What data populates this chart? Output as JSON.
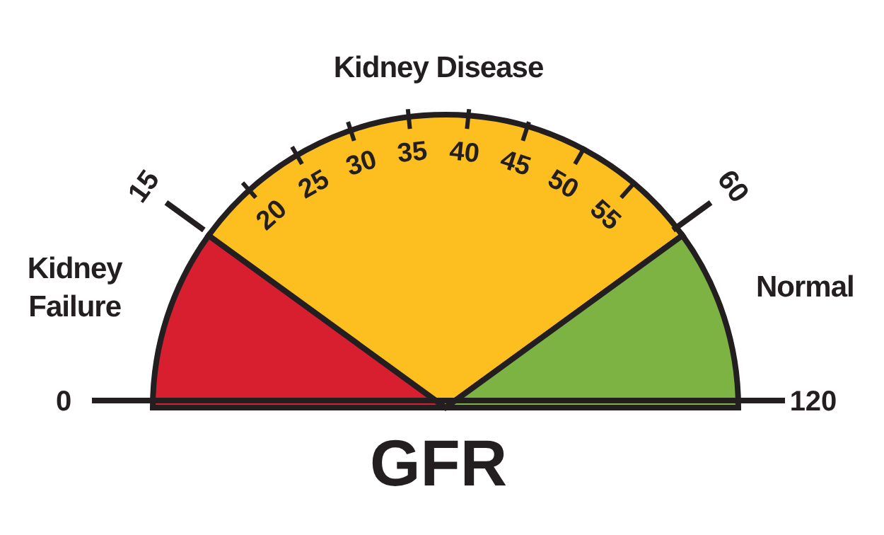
{
  "chart_data": {
    "type": "pie",
    "title": "GFR",
    "categories": [
      "Kidney Failure",
      "Kidney Disease",
      "Normal"
    ],
    "values": [
      20,
      60,
      20
    ],
    "colors": [
      "#d71f30",
      "#fdbf1f",
      "#7cb342"
    ],
    "annotations": [
      "0",
      "15",
      "20",
      "25",
      "30",
      "35",
      "40",
      "45",
      "50",
      "55",
      "60",
      "120"
    ],
    "legend": false
  }
}
